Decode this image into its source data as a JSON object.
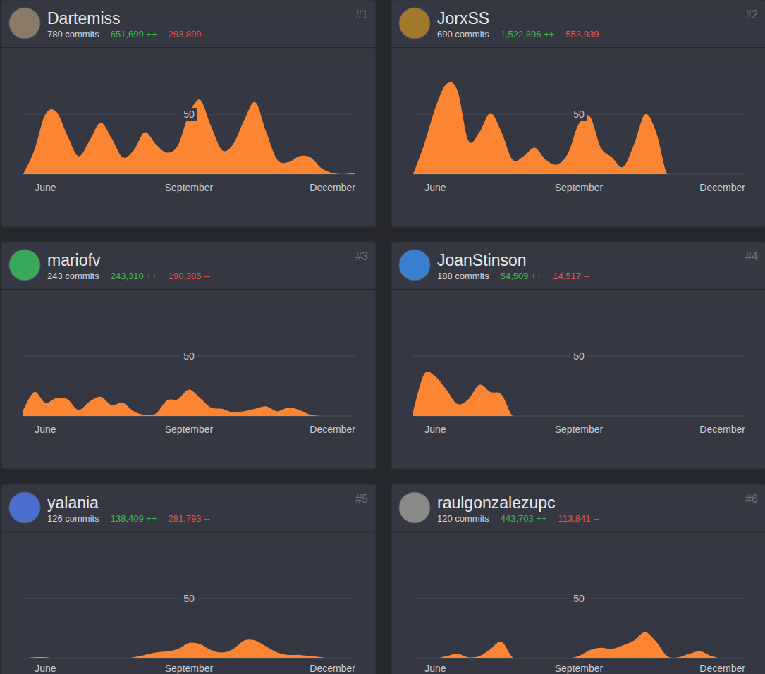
{
  "chart_data": [
    {
      "type": "area",
      "title": "Dartemiss",
      "rank": "#1",
      "commits": "780 commits",
      "additions": "651,699 ++",
      "deletions": "293,899 --",
      "categories": [
        null,
        null,
        "June",
        null,
        null,
        null,
        null,
        null,
        null,
        null,
        null,
        null,
        null,
        null,
        null,
        "September",
        null,
        null,
        null,
        null,
        null,
        null,
        null,
        null,
        null,
        null,
        null,
        null,
        "December",
        null,
        null
      ],
      "values": [
        0,
        20,
        50,
        52,
        32,
        15,
        28,
        43,
        30,
        14,
        20,
        35,
        25,
        18,
        24,
        50,
        62,
        40,
        20,
        25,
        45,
        60,
        35,
        12,
        10,
        15,
        14,
        5,
        1,
        0,
        1
      ],
      "color": "#fb8532",
      "ylim": [
        0,
        100
      ],
      "yticks": [
        50
      ],
      "grid": true
    },
    {
      "type": "area",
      "title": "JorxSS",
      "rank": "#2",
      "commits": "690 commits",
      "additions": "1,522,896 ++",
      "deletions": "553,939 --",
      "categories": [
        null,
        null,
        "June",
        null,
        null,
        null,
        null,
        null,
        null,
        null,
        null,
        null,
        null,
        null,
        null,
        "September",
        null,
        null,
        null,
        null,
        null,
        null,
        null,
        null,
        null,
        null,
        null,
        null,
        "December",
        null,
        null
      ],
      "values": [
        0,
        25,
        55,
        75,
        70,
        28,
        35,
        51,
        35,
        12,
        15,
        22,
        12,
        8,
        17,
        42,
        48,
        22,
        14,
        6,
        25,
        50,
        35,
        0,
        0,
        0,
        0,
        0,
        0,
        0,
        0
      ],
      "color": "#fb8532",
      "ylim": [
        0,
        100
      ],
      "yticks": [
        50
      ],
      "grid": true
    },
    {
      "type": "area",
      "title": "mariofv",
      "rank": "#3",
      "commits": "243 commits",
      "additions": "243,310 ++",
      "deletions": "190,385 --",
      "categories": [
        null,
        null,
        "June",
        null,
        null,
        null,
        null,
        null,
        null,
        null,
        null,
        null,
        null,
        null,
        null,
        "September",
        null,
        null,
        null,
        null,
        null,
        null,
        null,
        null,
        null,
        null,
        null,
        null,
        "December",
        null,
        null
      ],
      "values": [
        5,
        20,
        11,
        15,
        14,
        5,
        12,
        16,
        9,
        11,
        4,
        1,
        2,
        13,
        14,
        22,
        15,
        7,
        6,
        3,
        4,
        6,
        8,
        4,
        7,
        5,
        1,
        0,
        0,
        0,
        0
      ],
      "color": "#fb8532",
      "ylim": [
        0,
        100
      ],
      "yticks": [
        50
      ],
      "grid": true
    },
    {
      "type": "area",
      "title": "JoanStinson",
      "rank": "#4",
      "commits": "188 commits",
      "additions": "54,509 ++",
      "deletions": "14,517 --",
      "categories": [
        null,
        null,
        "June",
        null,
        null,
        null,
        null,
        null,
        null,
        null,
        null,
        null,
        null,
        null,
        null,
        "September",
        null,
        null,
        null,
        null,
        null,
        null,
        null,
        null,
        null,
        null,
        null,
        null,
        "December",
        null,
        null
      ],
      "values": [
        4,
        35,
        33,
        22,
        10,
        14,
        26,
        20,
        18,
        0,
        0,
        0,
        0,
        0,
        0,
        0,
        0,
        0,
        0,
        0,
        0,
        0,
        0,
        0,
        0,
        0,
        0,
        0,
        0,
        0,
        0
      ],
      "color": "#fb8532",
      "ylim": [
        0,
        100
      ],
      "yticks": [
        50
      ],
      "grid": true
    },
    {
      "type": "area",
      "title": "yalania",
      "rank": "#5",
      "commits": "126 commits",
      "additions": "138,409 ++",
      "deletions": "281,793 --",
      "categories": [
        null,
        null,
        "June",
        null,
        null,
        null,
        null,
        null,
        null,
        null,
        null,
        null,
        null,
        null,
        null,
        "September",
        null,
        null,
        null,
        null,
        null,
        null,
        null,
        null,
        null,
        null,
        null,
        null,
        "December",
        null,
        null
      ],
      "values": [
        0,
        1,
        1,
        0,
        0,
        0,
        0,
        0,
        0,
        0,
        1,
        3,
        5,
        6,
        8,
        13,
        12,
        7,
        5,
        8,
        15,
        15,
        10,
        5,
        3,
        3,
        2,
        1,
        0,
        0,
        0
      ],
      "color": "#fb8532",
      "ylim": [
        0,
        100
      ],
      "yticks": [
        50
      ],
      "grid": true
    },
    {
      "type": "area",
      "title": "raulgonzalezupc",
      "rank": "#6",
      "commits": "120 commits",
      "additions": "443,703 ++",
      "deletions": "113,841 --",
      "categories": [
        null,
        null,
        "June",
        null,
        null,
        null,
        null,
        null,
        null,
        null,
        null,
        null,
        null,
        null,
        null,
        "September",
        null,
        null,
        null,
        null,
        null,
        null,
        null,
        null,
        null,
        null,
        null,
        null,
        "December",
        null,
        null
      ],
      "values": [
        0,
        0,
        0,
        2,
        4,
        1,
        2,
        8,
        14,
        1,
        0,
        0,
        0,
        0,
        0,
        2,
        7,
        9,
        8,
        11,
        15,
        22,
        14,
        2,
        1,
        4,
        6,
        2,
        0,
        0,
        0
      ],
      "color": "#fb8532",
      "ylim": [
        0,
        100
      ],
      "yticks": [
        50
      ],
      "grid": true
    }
  ]
}
